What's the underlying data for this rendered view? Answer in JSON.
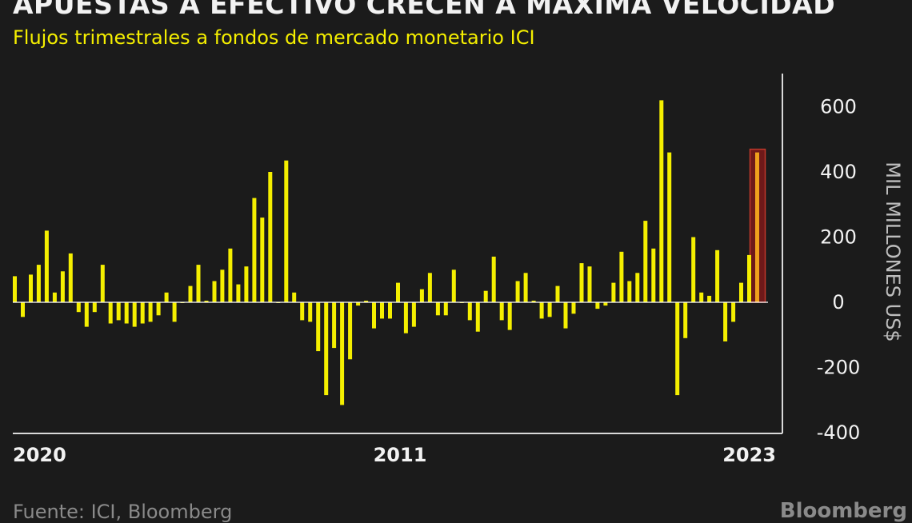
{
  "header": {
    "title": "APUESTAS A EFECTIVO CRECEN A MÁXIMA VELOCIDAD",
    "subtitle": "Flujos trimestrales a fondos de mercado monetario ICI"
  },
  "footer": {
    "source": "Fuente: ICI, Bloomberg",
    "brand": "Bloomberg"
  },
  "colors": {
    "background": "#1b1b1b",
    "bar": "#f5ef00",
    "highlight_bar": "#f0a01c",
    "highlight_box": "#8b1a1a",
    "axis": "#d9d9d9",
    "text": "#f2f2f2"
  },
  "chart_data": {
    "type": "bar",
    "title": "APUESTAS A EFECTIVO CRECEN A MÁXIMA VELOCIDAD",
    "subtitle": "Flujos trimestrales a fondos de mercado monetario ICI",
    "ylabel": "MIL MILLONES US$",
    "ylim": [
      -400,
      700
    ],
    "yticks": [
      600,
      400,
      200,
      0,
      -200,
      -400
    ],
    "x_tick_labels": [
      "2020",
      "2011",
      "2023"
    ],
    "highlight": "last bar (2023)",
    "values": [
      80,
      -45,
      85,
      115,
      220,
      30,
      95,
      150,
      -30,
      -75,
      -30,
      115,
      -65,
      -55,
      -65,
      -75,
      -65,
      -60,
      -40,
      30,
      -60,
      0,
      50,
      115,
      5,
      65,
      100,
      165,
      55,
      110,
      320,
      260,
      400,
      0,
      435,
      30,
      -55,
      -60,
      -150,
      -285,
      -140,
      -315,
      -175,
      -10,
      5,
      -80,
      -50,
      -50,
      60,
      -95,
      -75,
      40,
      90,
      -40,
      -40,
      100,
      0,
      -55,
      -90,
      35,
      140,
      -55,
      -85,
      65,
      90,
      5,
      -50,
      -45,
      50,
      -80,
      -35,
      120,
      110,
      -20,
      -10,
      60,
      155,
      65,
      90,
      250,
      165,
      620,
      460,
      -285,
      -110,
      200,
      30,
      20,
      160,
      -120,
      -60,
      60,
      145,
      460
    ]
  }
}
